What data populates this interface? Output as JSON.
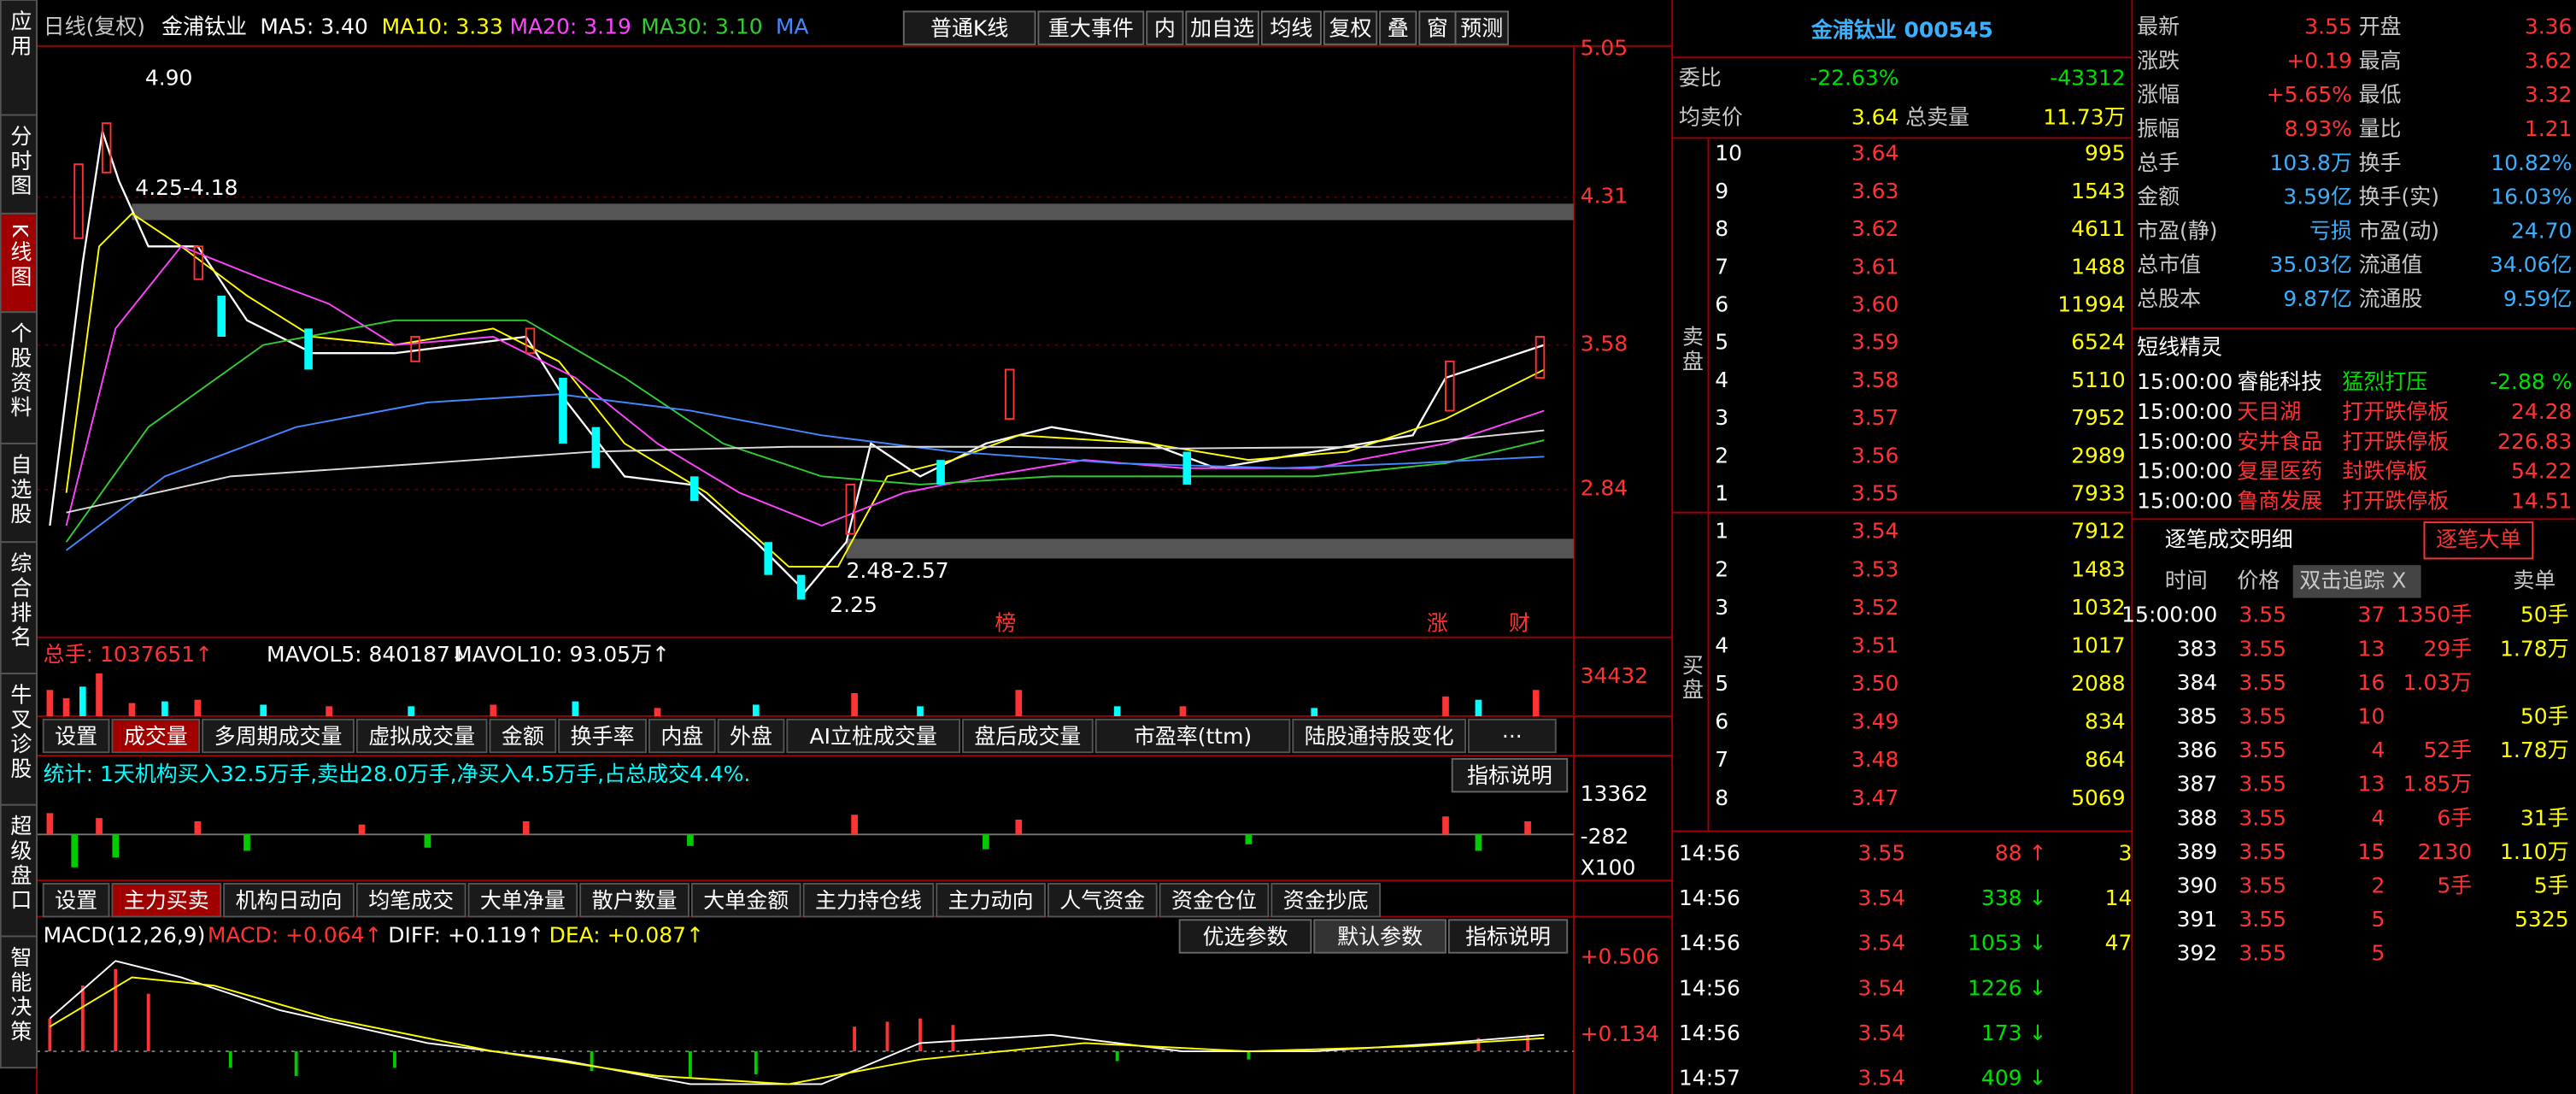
{
  "sidebar": [
    "应用",
    "分时图",
    "K线图",
    "个股资料",
    "自选股",
    "综合排名",
    "牛叉诊股",
    "超级盘口",
    "智能决策"
  ],
  "chart_header": {
    "period": "日线(复权)",
    "name": "金浦钛业",
    "ma5": "MA5: 3.40",
    "ma10": "MA10: 3.33",
    "ma20": "MA20: 3.19",
    "ma30": "MA30: 3.10",
    "ma": "MA"
  },
  "toolbar": [
    "普通K线",
    "重大事件",
    "内",
    "加自选",
    "均线",
    "复权",
    "叠",
    "窗",
    "预测"
  ],
  "price_axis": [
    "5.05",
    "4.31",
    "3.58",
    "2.84"
  ],
  "annotations": {
    "high": "4.90",
    "upper_gap": "4.25-4.18",
    "lower_gap": "2.48-2.57",
    "low": "2.25",
    "events": [
      "榜",
      "涨",
      "财"
    ]
  },
  "volume": {
    "total": "总手: 1037651↑",
    "mavol5": "MAVOL5: 840187↓",
    "mavol10": "MAVOL10: 93.05万↑",
    "axis": [
      "34432"
    ]
  },
  "tabs1": [
    "设置",
    "成交量",
    "多周期成交量",
    "虚拟成交量",
    "金额",
    "换手率",
    "内盘",
    "外盘",
    "AI立桩成交量",
    "盘后成交量",
    "市盈率(ttm)",
    "陆股通持股变化",
    "···"
  ],
  "stats": {
    "text": "统计: 1天机构买入32.5万手,卖出28.0万手,净买入4.5万手,占总成交4.4%.",
    "button": "指标说明",
    "axis": [
      "13362",
      "-282",
      "X100"
    ]
  },
  "tabs2": [
    "设置",
    "主力买卖",
    "机构日动向",
    "均笔成交",
    "大单净量",
    "散户数量",
    "大单金额",
    "主力持仓线",
    "主力动向",
    "人气资金",
    "资金仓位",
    "资金抄底"
  ],
  "macd": {
    "name": "MACD(12,26,9)",
    "macd": "MACD: +0.064↑",
    "diff": "DIFF: +0.119↑",
    "dea": "DEA: +0.087↑",
    "buttons": [
      "优选参数",
      "默认参数",
      "指标说明"
    ],
    "axis": [
      "+0.506",
      "+0.134"
    ]
  },
  "quote_panel": {
    "title": "金浦钛业 000545",
    "ratio_label": "委比",
    "ratio": "-22.63%",
    "ratio_diff": "-43312",
    "avg_label": "均卖价",
    "avg": "3.64",
    "total_label": "总卖量",
    "total": "11.73万",
    "sell_label": "卖盘",
    "buy_label": "买盘",
    "sells": [
      [
        "10",
        "3.64",
        "995"
      ],
      [
        "9",
        "3.63",
        "1543"
      ],
      [
        "8",
        "3.62",
        "4611"
      ],
      [
        "7",
        "3.61",
        "1488"
      ],
      [
        "6",
        "3.60",
        "11994"
      ],
      [
        "5",
        "3.59",
        "6524"
      ],
      [
        "4",
        "3.58",
        "5110"
      ],
      [
        "3",
        "3.57",
        "7952"
      ],
      [
        "2",
        "3.56",
        "2989"
      ],
      [
        "1",
        "3.55",
        "7933"
      ]
    ],
    "buys": [
      [
        "1",
        "3.54",
        "7912"
      ],
      [
        "2",
        "3.53",
        "1483"
      ],
      [
        "3",
        "3.52",
        "1032"
      ],
      [
        "4",
        "3.51",
        "1017"
      ],
      [
        "5",
        "3.50",
        "2088"
      ],
      [
        "6",
        "3.49",
        "834"
      ],
      [
        "7",
        "3.48",
        "864"
      ],
      [
        "8",
        "3.47",
        "5069"
      ]
    ],
    "trades": [
      [
        "14:56",
        "3.55",
        "88 ↑",
        "3"
      ],
      [
        "14:56",
        "3.54",
        "338 ↓",
        "14"
      ],
      [
        "14:56",
        "3.54",
        "1053 ↓",
        "47"
      ],
      [
        "14:56",
        "3.54",
        "1226 ↓",
        ""
      ],
      [
        "14:56",
        "3.54",
        "173 ↓",
        ""
      ],
      [
        "14:57",
        "3.54",
        "409 ↓",
        ""
      ]
    ]
  },
  "stats_panel": [
    [
      "最新",
      "3.55",
      "开盘",
      "3.36"
    ],
    [
      "涨跌",
      "+0.19",
      "最高",
      "3.62"
    ],
    [
      "涨幅",
      "+5.65%",
      "最低",
      "3.32"
    ],
    [
      "振幅",
      "8.93%",
      "量比",
      "1.21"
    ],
    [
      "总手",
      "103.8万",
      "换手",
      "10.82%"
    ],
    [
      "金额",
      "3.59亿",
      "换手(实)",
      "16.03%"
    ],
    [
      "市盈(静)",
      "亏损",
      "市盈(动)",
      "24.70"
    ],
    [
      "总市值",
      "35.03亿",
      "流通值",
      "34.06亿"
    ],
    [
      "总股本",
      "9.87亿",
      "流通股",
      "9.59亿"
    ]
  ],
  "alerts": {
    "title": "短线精灵",
    "rows": [
      [
        "15:00:00",
        "睿能科技",
        "猛烈打压",
        "-2.88 %"
      ],
      [
        "15:00:00",
        "天目湖",
        "打开跌停板",
        "24.28"
      ],
      [
        "15:00:00",
        "安井食品",
        "打开跌停板",
        "226.83"
      ],
      [
        "15:00:00",
        "复星医药",
        "封跌停板",
        "54.22"
      ],
      [
        "15:00:00",
        "鲁商发展",
        "打开跌停板",
        "14.51"
      ]
    ]
  },
  "ticks": {
    "title": "逐笔成交明细",
    "big": "逐笔大单",
    "headers": [
      "时间",
      "价格",
      "双击追踪 X",
      "卖单"
    ],
    "rows": [
      [
        "15:00:00",
        "3.55",
        "37",
        "1350手",
        "50手"
      ],
      [
        "383",
        "3.55",
        "13",
        "29手",
        "1.78万"
      ],
      [
        "384",
        "3.55",
        "16",
        "1.03万",
        ""
      ],
      [
        "385",
        "3.55",
        "10",
        "",
        "50手"
      ],
      [
        "386",
        "3.55",
        "4",
        "52手",
        "1.78万"
      ],
      [
        "387",
        "3.55",
        "13",
        "1.85万",
        ""
      ],
      [
        "388",
        "3.55",
        "4",
        "6手",
        "31手"
      ],
      [
        "389",
        "3.55",
        "15",
        "2130",
        "1.10万"
      ],
      [
        "390",
        "3.55",
        "2",
        "5手",
        "5手"
      ],
      [
        "391",
        "3.55",
        "5",
        "",
        "5325"
      ],
      [
        "392",
        "3.55",
        "5",
        "",
        ""
      ]
    ]
  }
}
